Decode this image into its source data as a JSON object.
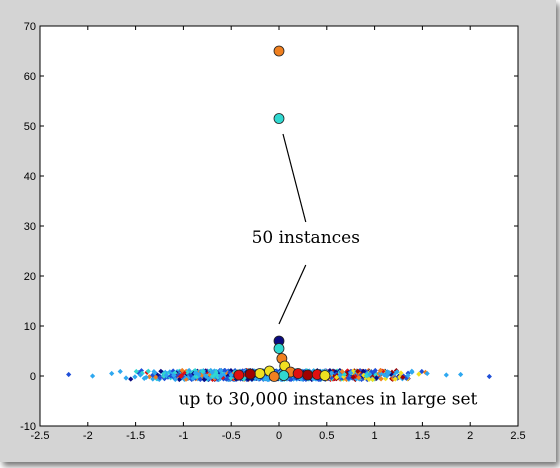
{
  "chart_data": {
    "type": "scatter",
    "title": "",
    "xlabel": "",
    "ylabel": "",
    "xlim": [
      -2.5,
      2.5
    ],
    "ylim": [
      -10,
      70
    ],
    "grid": false,
    "x_ticks": [
      -2.5,
      -2,
      -1.5,
      -1,
      -0.5,
      0,
      0.5,
      1,
      1.5,
      2,
      2.5
    ],
    "y_ticks": [
      -10,
      0,
      10,
      20,
      30,
      40,
      50,
      60,
      70
    ],
    "x_tick_labels": [
      "-2.5",
      "-2",
      "-1.5",
      "-1",
      "-0.5",
      "0",
      "0.5",
      "1",
      "1.5",
      "2",
      "2.5"
    ],
    "y_tick_labels": [
      "-10",
      "0",
      "10",
      "20",
      "30",
      "40",
      "50",
      "60",
      "70"
    ],
    "colors": {
      "dark_blue": "#0a0a80",
      "blue": "#1f4fd8",
      "light_blue": "#2ea8f0",
      "cyan": "#30d8d0",
      "yellow": "#f0e020",
      "orange": "#f08020",
      "red": "#e01010",
      "dark_red": "#a00000"
    },
    "series": [
      {
        "kind": "large_set",
        "marker": "diamond",
        "note": "dense band of points near y = 0 spanning x from about -2.2 to 2.2",
        "points": [
          [
            -2.2,
            0.3
          ],
          [
            -1.95,
            0.0
          ],
          [
            -1.75,
            0.5
          ],
          [
            -1.6,
            -0.4
          ],
          [
            -1.45,
            0.2
          ],
          [
            -1.3,
            0.6
          ],
          [
            -1.1,
            0.1
          ],
          [
            -0.9,
            -0.5
          ],
          [
            -0.7,
            0.7
          ],
          [
            -0.5,
            0.2
          ],
          [
            -0.3,
            0.5
          ],
          [
            -0.15,
            -0.3
          ],
          [
            0.0,
            0.4
          ],
          [
            0.15,
            0.2
          ],
          [
            0.35,
            0.8
          ],
          [
            0.55,
            0.5
          ],
          [
            0.75,
            0.6
          ],
          [
            0.95,
            0.3
          ],
          [
            1.15,
            0.7
          ],
          [
            1.35,
            0.1
          ],
          [
            1.55,
            0.5
          ],
          [
            1.75,
            0.2
          ],
          [
            1.9,
            0.3
          ],
          [
            2.2,
            -0.1
          ]
        ]
      },
      {
        "kind": "small_set",
        "marker": "circle",
        "points": [
          {
            "x": 0.0,
            "y": 65,
            "color": "orange"
          },
          {
            "x": 0.0,
            "y": 51.5,
            "color": "cyan"
          },
          {
            "x": 0.0,
            "y": 7,
            "color": "dark_blue"
          },
          {
            "x": 0.0,
            "y": 5.5,
            "color": "cyan"
          },
          {
            "x": 0.03,
            "y": 3.5,
            "color": "orange"
          },
          {
            "x": 0.06,
            "y": 2,
            "color": "yellow"
          },
          {
            "x": -0.1,
            "y": 1,
            "color": "yellow"
          },
          {
            "x": 0.12,
            "y": 0.8,
            "color": "orange"
          },
          {
            "x": -0.2,
            "y": 0.5,
            "color": "yellow"
          },
          {
            "x": 0.2,
            "y": 0.5,
            "color": "red"
          },
          {
            "x": 0.3,
            "y": 0.2,
            "color": "dark_red"
          },
          {
            "x": 0.4,
            "y": 0.3,
            "color": "red"
          },
          {
            "x": -0.3,
            "y": 0.4,
            "color": "dark_red"
          },
          {
            "x": -0.42,
            "y": 0.2,
            "color": "red"
          },
          {
            "x": 0.48,
            "y": 0.1,
            "color": "yellow"
          },
          {
            "x": 0.05,
            "y": 0.1,
            "color": "cyan"
          },
          {
            "x": -0.05,
            "y": -0.1,
            "color": "orange"
          }
        ]
      }
    ],
    "annotations": [
      {
        "text": "50 instances",
        "x": 0.28,
        "y": 26.6
      },
      {
        "text": "up to 30,000 instances in large set",
        "x": -1.05,
        "y": -5.7
      }
    ],
    "annotation_line": {
      "from": [
        0.0,
        50.0
      ],
      "mid_top": [
        0.28,
        30.0
      ],
      "mid_bottom": [
        0.28,
        23.0
      ],
      "to": [
        0.0,
        10.0
      ]
    }
  }
}
